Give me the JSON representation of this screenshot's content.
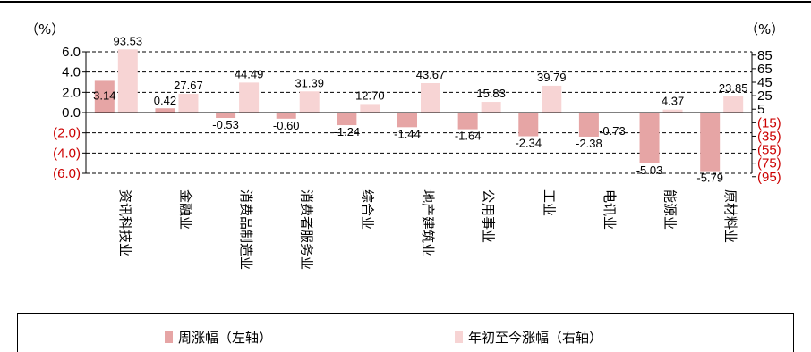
{
  "chart_data": {
    "type": "bar",
    "title": "",
    "left_unit": "（%）",
    "right_unit": "（%）",
    "categories": [
      "资讯科技业",
      "金融业",
      "消费品制造业",
      "消费者服务业",
      "综合业",
      "地产建筑业",
      "公用事业",
      "工业",
      "电讯业",
      "能源业",
      "原材料业"
    ],
    "series": [
      {
        "name": "周涨幅（左轴）",
        "axis": "left",
        "color": "#e6a5a5",
        "values": [
          3.14,
          0.42,
          -0.53,
          -0.6,
          -1.24,
          -1.44,
          -1.64,
          -2.34,
          -2.38,
          -5.03,
          -5.79
        ],
        "labels": [
          "3.14",
          "0.42",
          "-0.53",
          "-0.60",
          "-1.24",
          "-1.44",
          "-1.64",
          "-2.34",
          "-2.38",
          "-5.03",
          "-5.79"
        ]
      },
      {
        "name": "年初至今涨幅（右轴）",
        "axis": "right",
        "color": "#f7d4d4",
        "values": [
          93.53,
          27.67,
          44.49,
          31.39,
          12.7,
          43.67,
          15.83,
          39.79,
          -0.73,
          4.37,
          23.85
        ],
        "labels": [
          "93.53",
          "27.67",
          "44.49",
          "31.39",
          "12.70",
          "43.67",
          "15.83",
          "39.79",
          "-0.73",
          "4.37",
          "23.85"
        ]
      }
    ],
    "left_axis": {
      "ylim": [
        -6.0,
        6.0
      ],
      "ticks": [
        6.0,
        4.0,
        2.0,
        0.0,
        -2.0,
        -4.0,
        -6.0
      ],
      "tick_labels": [
        "6.0",
        "4.0",
        "2.0",
        "0.0",
        "(2.0)",
        "(4.0)",
        "(6.0)"
      ]
    },
    "right_axis": {
      "ylim": [
        -95,
        95
      ],
      "ticks": [
        85,
        65,
        45,
        25,
        5,
        -15,
        -35,
        -55,
        -75,
        -95
      ],
      "tick_labels": [
        "85",
        "65",
        "45",
        "25",
        "5",
        "(15)",
        "(35)",
        "(55)",
        "(75)",
        "(95)"
      ]
    },
    "negative_tick_color": "#cc0000",
    "grid": "dashed horizontal"
  },
  "legend": {
    "weekly": "周涨幅（左轴）",
    "ytd": "年初至今涨幅（右轴）"
  }
}
